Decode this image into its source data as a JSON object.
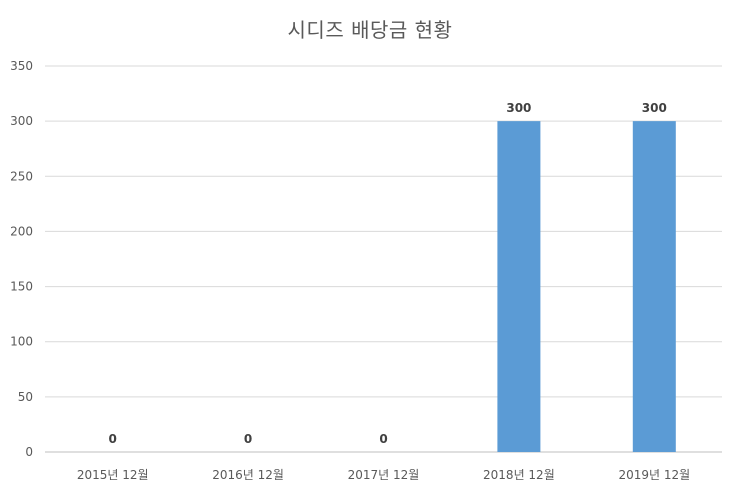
{
  "chart_data": {
    "type": "bar",
    "title": "시디즈 배당금 현황",
    "categories": [
      "2015년 12월",
      "2016년 12월",
      "2017년 12월",
      "2018년 12월",
      "2019년 12월"
    ],
    "values": [
      0,
      0,
      0,
      300,
      300
    ],
    "data_labels": [
      "0",
      "0",
      "0",
      "300",
      "300"
    ],
    "ylim": [
      0,
      350
    ],
    "yticks": [
      0,
      50,
      100,
      150,
      200,
      250,
      300,
      350
    ],
    "grid": true,
    "legend": "none",
    "colors": {
      "bar": "#5b9bd5",
      "grid": "#d9d9d9",
      "axis": "#bfbfbf"
    }
  }
}
